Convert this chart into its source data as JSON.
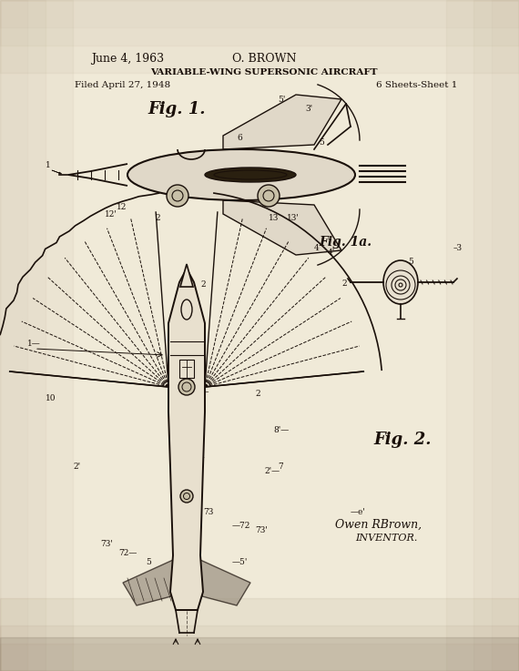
{
  "bg_color": "#f0ead8",
  "text_color": "#1a100a",
  "date": "June 4, 1963",
  "inventor": "O. BROWN",
  "title": "VARIABLE-WING SUPERSONIC AIRCRAFT",
  "filed": "Filed April 27, 1948",
  "sheets": "6 Sheets-Sheet 1",
  "fig1_label": "Fig. 1.",
  "fig1a_label": "Fig. 1a.",
  "fig2_label": "Fig. 2.",
  "signature_line1": "Owen RBrown,",
  "inventor_label": "INVENTOR."
}
